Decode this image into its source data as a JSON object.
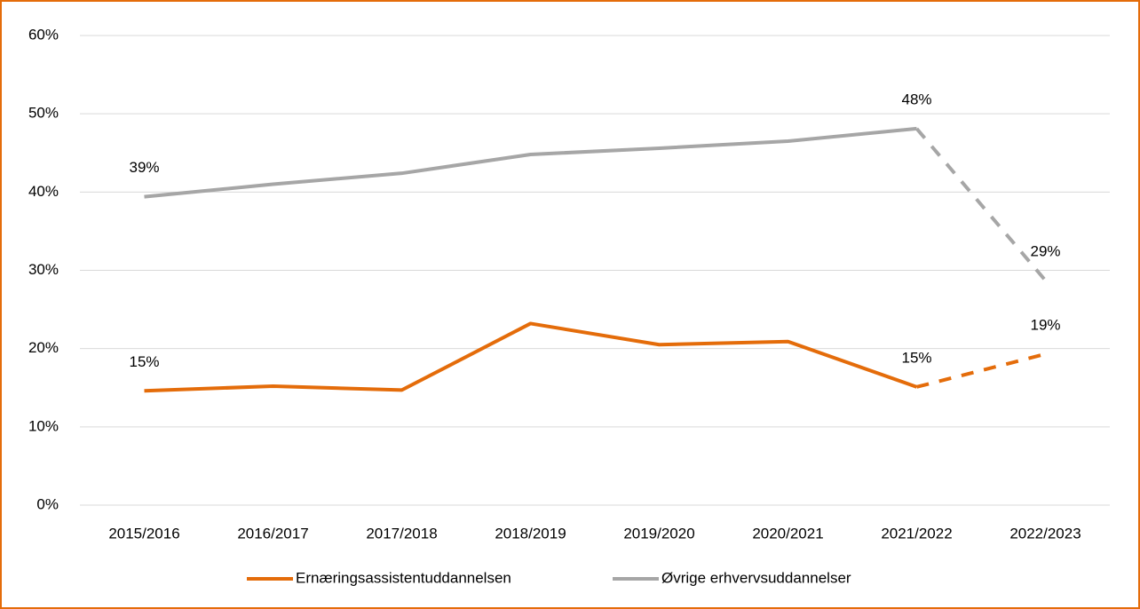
{
  "chart_data": {
    "type": "line",
    "categories": [
      "2015/2016",
      "2016/2017",
      "2017/2018",
      "2018/2019",
      "2019/2020",
      "2020/2021",
      "2021/2022",
      "2022/2023"
    ],
    "series": [
      {
        "name": "Ernæringsassistentuddannelsen",
        "color": "#e46c0a",
        "values": [
          14.6,
          15.2,
          14.7,
          23.2,
          20.5,
          20.9,
          15.1,
          19.3
        ],
        "value_labels": [
          "15%",
          null,
          null,
          null,
          null,
          null,
          "15%",
          "19%"
        ],
        "dashed_from": 6
      },
      {
        "name": "Øvrige erhvervsuddannelser",
        "color": "#a6a6a6",
        "values": [
          39.4,
          41.0,
          42.4,
          44.8,
          45.6,
          46.5,
          48.1,
          28.7
        ],
        "value_labels": [
          "39%",
          null,
          null,
          null,
          null,
          null,
          "48%",
          "29%"
        ],
        "dashed_from": 6
      }
    ],
    "ylim": [
      0,
      60
    ],
    "yticks": [
      {
        "value": 0,
        "label": "0%"
      },
      {
        "value": 10,
        "label": "10%"
      },
      {
        "value": 20,
        "label": "20%"
      },
      {
        "value": 30,
        "label": "30%"
      },
      {
        "value": 40,
        "label": "40%"
      },
      {
        "value": 50,
        "label": "50%"
      },
      {
        "value": 60,
        "label": "60%"
      }
    ],
    "grid": true,
    "legend": "bottom"
  }
}
